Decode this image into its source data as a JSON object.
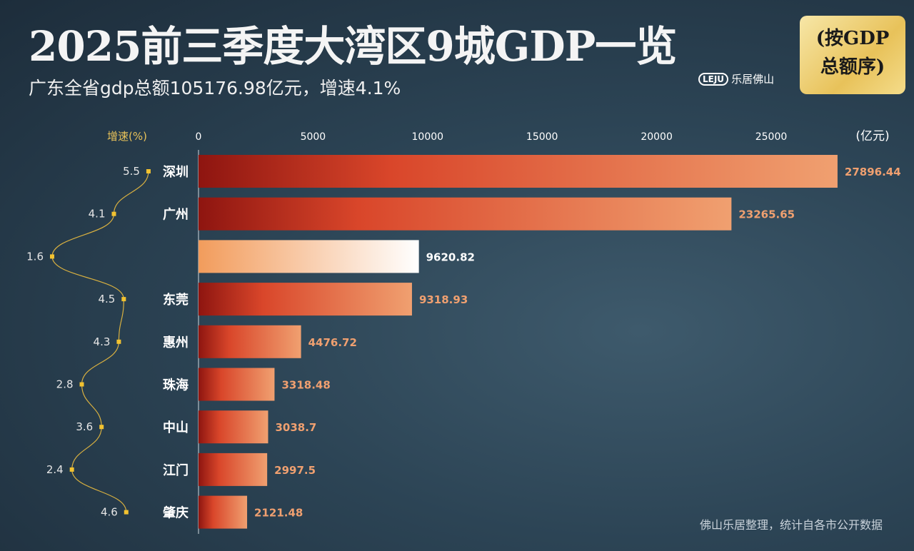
{
  "header": {
    "title": "2025前三季度大湾区9城GDP一览",
    "subtitle": "广东全省gdp总额105176.98亿元，增速4.1%",
    "badge_line1": "(按GDP",
    "badge_line2": "总额序)",
    "logo_mark": "LEJU",
    "logo_text": "乐居佛山"
  },
  "footer": "佛山乐居整理，统计自各市公开数据",
  "chart_data": {
    "type": "bar",
    "orientation": "horizontal",
    "title": "2025前三季度大湾区9城GDP一览",
    "unit_label": "(亿元)",
    "growth_label": "增速(%)",
    "xlim": [
      0,
      27896.44
    ],
    "xticks": [
      0,
      5000,
      10000,
      15000,
      20000,
      25000
    ],
    "categories": [
      "深圳",
      "广州",
      "",
      "东莞",
      "惠州",
      "珠海",
      "中山",
      "江门",
      "肇庆"
    ],
    "values": [
      27896.44,
      23265.65,
      9620.82,
      9318.93,
      4476.72,
      3318.48,
      3038.7,
      2997.5,
      2121.48
    ],
    "value_labels": [
      "27896.44",
      "23265.65",
      "9620.82",
      "9318.93",
      "4476.72",
      "3318.48",
      "3038.7",
      "2997.5",
      "2121.48"
    ],
    "growth": [
      5.5,
      4.1,
      1.6,
      4.5,
      4.3,
      2.8,
      3.6,
      2.4,
      4.6
    ],
    "growth_labels": [
      "5.5",
      "4.1",
      "1.6",
      "4.5",
      "4.3",
      "2.8",
      "3.6",
      "2.4",
      "4.6"
    ],
    "highlight_index": 2,
    "colors": {
      "bar_start": "#8e1510",
      "bar_mid": "#d9462a",
      "bar_end": "#f0a070",
      "highlight_start": "#f29c5c",
      "highlight_end": "#ffffff",
      "value_label": "#f0a070",
      "growth_line": "#d8b040"
    }
  }
}
